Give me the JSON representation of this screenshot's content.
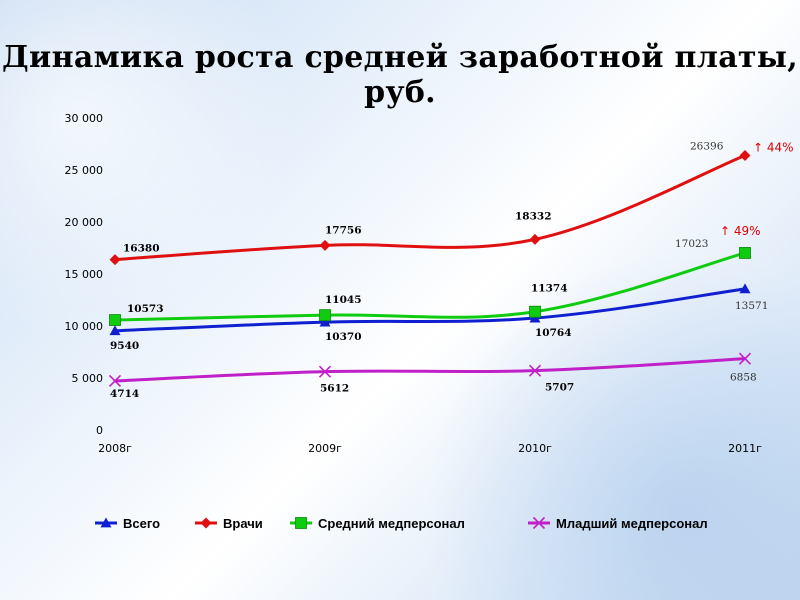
{
  "title": "Динамика роста средней заработной платы, руб.",
  "chart_data": {
    "type": "line",
    "categories": [
      "2008г",
      "2009г",
      "2010г",
      "2011г"
    ],
    "ylim": [
      0,
      30000
    ],
    "yticks": [
      "0",
      "5 000",
      "10 000",
      "15 000",
      "20 000",
      "25 000",
      "30 000"
    ],
    "grid": false,
    "legend_position": "bottom",
    "series": [
      {
        "name": "Всего",
        "color": "#1020d0",
        "marker": "triangle",
        "values": [
          9540,
          10370,
          10764,
          13571
        ],
        "labels": [
          "9540",
          "10370",
          "10764",
          "13571"
        ]
      },
      {
        "name": "Врачи",
        "color": "#e01010",
        "marker": "diamond",
        "values": [
          16380,
          17756,
          18332,
          26396
        ],
        "labels": [
          "16380",
          "17756",
          "18332",
          "26396"
        ]
      },
      {
        "name": "Средний медперсонал",
        "color": "#10cc10",
        "marker": "square",
        "values": [
          10573,
          11045,
          11374,
          17023
        ],
        "labels": [
          "10573",
          "11045",
          "11374",
          "17023"
        ]
      },
      {
        "name": "Младший медперсонал",
        "color": "#c020c8",
        "marker": "x",
        "values": [
          4714,
          5612,
          5707,
          6858
        ],
        "labels": [
          "4714",
          "5612",
          "5707",
          "6858"
        ]
      }
    ],
    "annotations": [
      {
        "text": "↑ 44%",
        "series": "Врачи",
        "category": "2011г"
      },
      {
        "text": "↑ 49%",
        "series": "Средний медперсонал",
        "category": "2011г"
      }
    ]
  }
}
